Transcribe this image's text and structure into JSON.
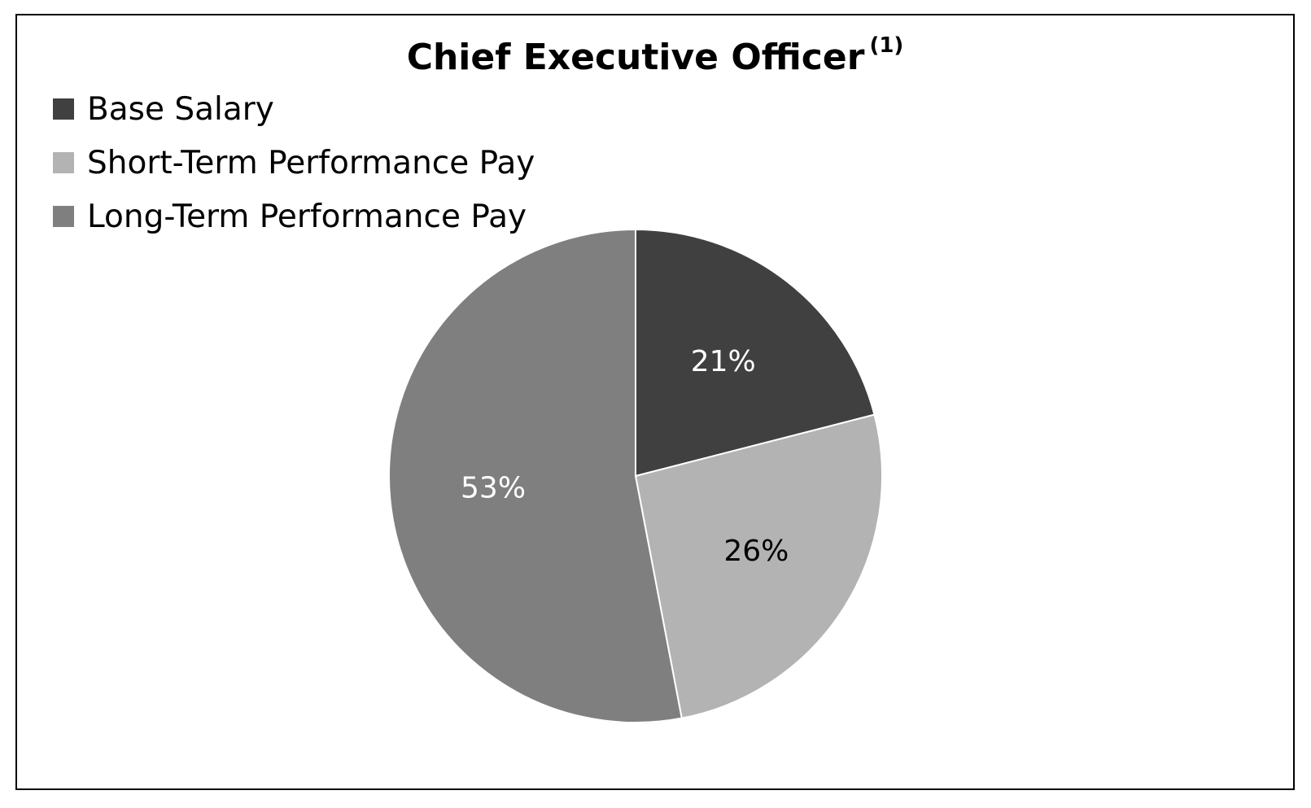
{
  "chart_data": {
    "type": "pie",
    "title": "Chief Executive Officer",
    "title_superscript": "(1)",
    "legend_position": "top-left",
    "slices": [
      {
        "label": "Base Salary",
        "value": 21,
        "display": "21%",
        "color": "#404040",
        "label_color": "#ffffff"
      },
      {
        "label": "Short-Term Performance Pay",
        "value": 26,
        "display": "26%",
        "color": "#b3b3b3",
        "label_color": "#000000"
      },
      {
        "label": "Long-Term Performance Pay",
        "value": 53,
        "display": "53%",
        "color": "#7f7f7f",
        "label_color": "#ffffff"
      }
    ]
  }
}
